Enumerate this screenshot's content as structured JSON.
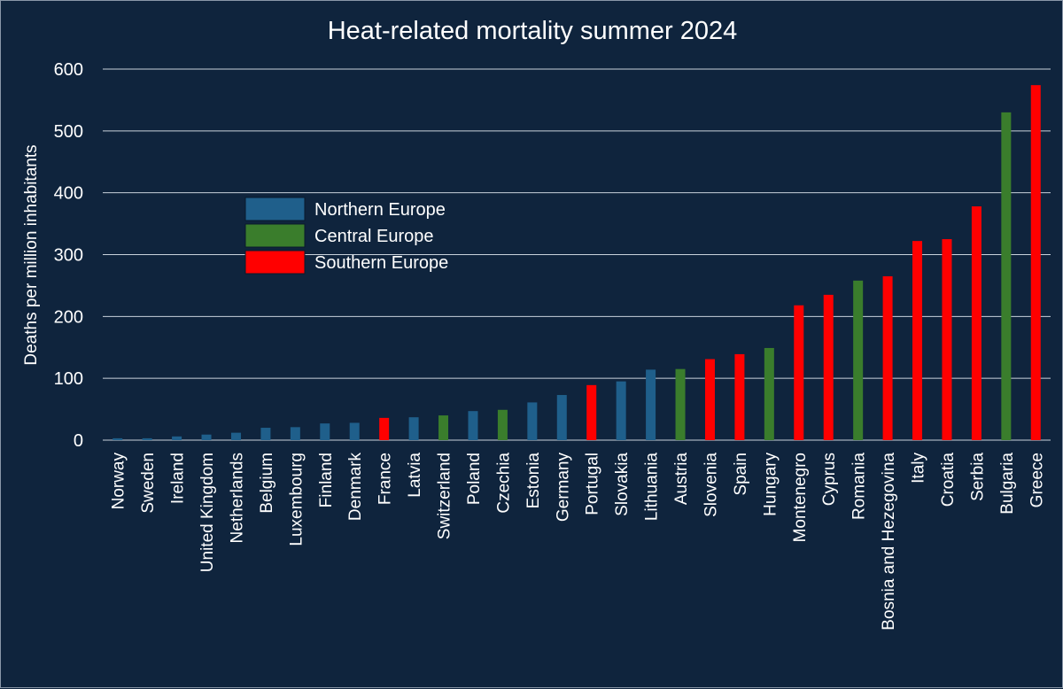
{
  "chart_data": {
    "type": "bar",
    "title": "Heat-related mortality summer 2024",
    "xlabel": "",
    "ylabel": "Deaths per million inhabitants",
    "ylim": [
      0,
      600
    ],
    "yticks": [
      0,
      100,
      200,
      300,
      400,
      500,
      600
    ],
    "grid": true,
    "legend_position": "upper-left",
    "legend": [
      {
        "name": "Northern Europe",
        "color": "#1f5f8b"
      },
      {
        "name": "Central Europe",
        "color": "#3a7d2c"
      },
      {
        "name": "Southern Europe",
        "color": "#ff0000"
      }
    ],
    "categories": [
      "Norway",
      "Sweden",
      "Ireland",
      "United Kingdom",
      "Netherlands",
      "Belgium",
      "Luxembourg",
      "Finland",
      "Denmark",
      "France",
      "Latvia",
      "Switzerland",
      "Poland",
      "Czechia",
      "Estonia",
      "Germany",
      "Portugal",
      "Slovakia",
      "Lithuania",
      "Austria",
      "Slovenia",
      "Spain",
      "Hungary",
      "Montenegro",
      "Cyprus",
      "Romania",
      "Bosnia and Hezegovina",
      "Italy",
      "Croatia",
      "Serbia",
      "Bulgaria",
      "Greece"
    ],
    "values": [
      3,
      3,
      6,
      9,
      12,
      20,
      21,
      27,
      28,
      36,
      37,
      40,
      47,
      49,
      61,
      73,
      89,
      95,
      114,
      115,
      131,
      139,
      149,
      218,
      235,
      258,
      265,
      322,
      325,
      378,
      530,
      574
    ],
    "groups": [
      "Northern Europe",
      "Northern Europe",
      "Northern Europe",
      "Northern Europe",
      "Northern Europe",
      "Northern Europe",
      "Northern Europe",
      "Northern Europe",
      "Northern Europe",
      "Southern Europe",
      "Northern Europe",
      "Central Europe",
      "Northern Europe",
      "Central Europe",
      "Northern Europe",
      "Northern Europe",
      "Southern Europe",
      "Northern Europe",
      "Northern Europe",
      "Central Europe",
      "Southern Europe",
      "Southern Europe",
      "Central Europe",
      "Southern Europe",
      "Southern Europe",
      "Central Europe",
      "Southern Europe",
      "Southern Europe",
      "Southern Europe",
      "Southern Europe",
      "Central Europe",
      "Southern Europe"
    ]
  }
}
